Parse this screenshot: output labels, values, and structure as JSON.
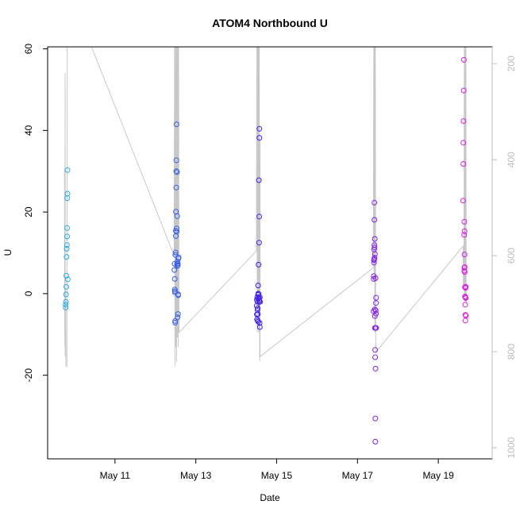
{
  "chart_data": {
    "type": "scatter",
    "title": "ATOM4 Northbound U",
    "xlabel": "Date",
    "ylabel": "U",
    "x_unit": "date",
    "xlim": [
      "2024-05-09T08:00",
      "2024-05-20T08:00"
    ],
    "ylim": [
      -40.5,
      60.5
    ],
    "x_ticks": [
      {
        "date": "2024-05-11",
        "label": "May 11"
      },
      {
        "date": "2024-05-13",
        "label": "May 13"
      },
      {
        "date": "2024-05-15",
        "label": "May 15"
      },
      {
        "date": "2024-05-17",
        "label": "May 17"
      },
      {
        "date": "2024-05-19",
        "label": "May 19"
      }
    ],
    "y_ticks": [
      -20,
      0,
      20,
      40,
      60
    ],
    "y2_ticks": [
      200,
      400,
      600,
      800,
      1000
    ],
    "y2_lim": [
      1023,
      165
    ],
    "y2_reversed": true,
    "grid": false,
    "legend": "none",
    "colors": {
      "axis": "#000000",
      "secondary_line": "#c8c8c8",
      "secondary_axis": "#bebebe"
    },
    "series": [
      {
        "color": "#29aee8",
        "points": [
          {
            "x": "2024-05-09T18:43",
            "y": -2.7
          },
          {
            "x": "2024-05-09T18:43",
            "y": -3.4
          },
          {
            "x": "2024-05-09T18:50",
            "y": -2.0
          },
          {
            "x": "2024-05-09T18:57",
            "y": -0.2
          },
          {
            "x": "2024-05-09T19:05",
            "y": 1.7
          },
          {
            "x": "2024-05-09T19:05",
            "y": 4.4
          },
          {
            "x": "2024-05-09T19:12",
            "y": 9.0
          },
          {
            "x": "2024-05-09T19:19",
            "y": 11.0
          },
          {
            "x": "2024-05-09T19:26",
            "y": 11.9
          },
          {
            "x": "2024-05-09T19:33",
            "y": 14.0
          },
          {
            "x": "2024-05-09T19:33",
            "y": 16.1
          },
          {
            "x": "2024-05-09T19:41",
            "y": 23.4
          },
          {
            "x": "2024-05-09T19:48",
            "y": 24.5
          },
          {
            "x": "2024-05-09T19:48",
            "y": 30.3
          },
          {
            "x": "2024-05-09T19:55",
            "y": 3.5
          }
        ]
      },
      {
        "color": "#3860ea",
        "points": [
          {
            "x": "2024-05-12T11:17",
            "y": 5.8
          },
          {
            "x": "2024-05-12T11:24",
            "y": 7.3
          },
          {
            "x": "2024-05-12T11:31",
            "y": 3.6
          },
          {
            "x": "2024-05-12T11:31",
            "y": 1.0
          },
          {
            "x": "2024-05-12T11:38",
            "y": 0.3
          },
          {
            "x": "2024-05-12T11:38",
            "y": 0.6
          },
          {
            "x": "2024-05-12T11:45",
            "y": -6.7
          },
          {
            "x": "2024-05-12T11:45",
            "y": -7.1
          },
          {
            "x": "2024-05-12T11:52",
            "y": 9.5
          },
          {
            "x": "2024-05-12T11:59",
            "y": 10.1
          },
          {
            "x": "2024-05-12T12:07",
            "y": 14.1
          },
          {
            "x": "2024-05-12T12:07",
            "y": 15.4
          },
          {
            "x": "2024-05-12T12:14",
            "y": 20.1
          },
          {
            "x": "2024-05-12T12:21",
            "y": 26.0
          },
          {
            "x": "2024-05-12T12:21",
            "y": 30.0
          },
          {
            "x": "2024-05-12T12:28",
            "y": 32.7
          },
          {
            "x": "2024-05-12T12:35",
            "y": 41.5
          },
          {
            "x": "2024-05-12T12:35",
            "y": 16.0
          },
          {
            "x": "2024-05-12T12:42",
            "y": 15.2
          },
          {
            "x": "2024-05-12T12:50",
            "y": 29.8
          },
          {
            "x": "2024-05-12T12:50",
            "y": 7.2
          },
          {
            "x": "2024-05-12T12:57",
            "y": 19.0
          },
          {
            "x": "2024-05-12T13:04",
            "y": 7.8
          },
          {
            "x": "2024-05-12T13:04",
            "y": 6.8
          },
          {
            "x": "2024-05-12T13:11",
            "y": -5.8
          },
          {
            "x": "2024-05-12T13:18",
            "y": 7.4
          },
          {
            "x": "2024-05-12T13:18",
            "y": 6.9
          },
          {
            "x": "2024-05-12T13:25",
            "y": -5.0
          },
          {
            "x": "2024-05-12T13:33",
            "y": -0.4
          },
          {
            "x": "2024-05-12T13:33",
            "y": -0.2
          },
          {
            "x": "2024-05-12T13:40",
            "y": 8.6
          },
          {
            "x": "2024-05-12T13:47",
            "y": 8.9
          }
        ]
      },
      {
        "color": "#4321e8",
        "points": [
          {
            "x": "2024-05-14T12:08",
            "y": -3.0
          },
          {
            "x": "2024-05-14T12:15",
            "y": -1.5
          },
          {
            "x": "2024-05-14T12:15",
            "y": -5.1
          },
          {
            "x": "2024-05-14T12:22",
            "y": -6.3
          },
          {
            "x": "2024-05-14T12:29",
            "y": -0.9
          },
          {
            "x": "2024-05-14T12:36",
            "y": -2.0
          },
          {
            "x": "2024-05-14T12:36",
            "y": -4.0
          },
          {
            "x": "2024-05-14T12:44",
            "y": -6.6
          },
          {
            "x": "2024-05-14T12:44",
            "y": -3.6
          },
          {
            "x": "2024-05-14T12:51",
            "y": -5.0
          },
          {
            "x": "2024-05-14T12:58",
            "y": 2.0
          },
          {
            "x": "2024-05-14T12:58",
            "y": -0.3
          },
          {
            "x": "2024-05-14T13:05",
            "y": -6.9
          },
          {
            "x": "2024-05-14T13:05",
            "y": 0.0
          },
          {
            "x": "2024-05-14T13:12",
            "y": -1.2
          },
          {
            "x": "2024-05-14T13:19",
            "y": -0.1
          },
          {
            "x": "2024-05-14T13:19",
            "y": 7.1
          },
          {
            "x": "2024-05-14T13:27",
            "y": 27.8
          },
          {
            "x": "2024-05-14T13:27",
            "y": -0.9
          },
          {
            "x": "2024-05-14T13:34",
            "y": 12.5
          },
          {
            "x": "2024-05-14T13:34",
            "y": -1.7
          },
          {
            "x": "2024-05-14T13:41",
            "y": 18.9
          },
          {
            "x": "2024-05-14T13:41",
            "y": -2.0
          },
          {
            "x": "2024-05-14T13:48",
            "y": 38.2
          },
          {
            "x": "2024-05-14T13:48",
            "y": 40.4
          },
          {
            "x": "2024-05-14T13:55",
            "y": -7.2
          },
          {
            "x": "2024-05-14T14:02",
            "y": -8.2
          },
          {
            "x": "2024-05-14T14:02",
            "y": -0.9
          },
          {
            "x": "2024-05-14T14:10",
            "y": -2.0
          }
        ]
      },
      {
        "color": "#8322e8",
        "points": [
          {
            "x": "2024-05-17T09:33",
            "y": -4.3
          },
          {
            "x": "2024-05-17T09:40",
            "y": 3.6
          },
          {
            "x": "2024-05-17T09:40",
            "y": 4.3
          },
          {
            "x": "2024-05-17T09:47",
            "y": 7.6
          },
          {
            "x": "2024-05-17T09:47",
            "y": 8.2
          },
          {
            "x": "2024-05-17T09:54",
            "y": 8.4
          },
          {
            "x": "2024-05-17T09:54",
            "y": 10.8
          },
          {
            "x": "2024-05-17T10:01",
            "y": 11.9
          },
          {
            "x": "2024-05-17T10:01",
            "y": 18.1
          },
          {
            "x": "2024-05-17T10:01",
            "y": 22.3
          },
          {
            "x": "2024-05-17T10:08",
            "y": 11.3
          },
          {
            "x": "2024-05-17T10:08",
            "y": 8.8
          },
          {
            "x": "2024-05-17T10:16",
            "y": -3.9
          },
          {
            "x": "2024-05-17T10:16",
            "y": 13.4
          },
          {
            "x": "2024-05-17T10:23",
            "y": 9.7
          },
          {
            "x": "2024-05-17T10:23",
            "y": -5.5
          },
          {
            "x": "2024-05-17T10:23",
            "y": -8.4
          },
          {
            "x": "2024-05-17T10:30",
            "y": -15.6
          },
          {
            "x": "2024-05-17T10:30",
            "y": -13.8
          },
          {
            "x": "2024-05-17T10:37",
            "y": -30.6
          },
          {
            "x": "2024-05-17T10:37",
            "y": -36.3
          },
          {
            "x": "2024-05-17T10:44",
            "y": 3.8
          },
          {
            "x": "2024-05-17T10:44",
            "y": -18.4
          },
          {
            "x": "2024-05-17T10:44",
            "y": -8.4
          },
          {
            "x": "2024-05-17T10:51",
            "y": -4.1
          },
          {
            "x": "2024-05-17T10:59",
            "y": -2.3
          },
          {
            "x": "2024-05-17T10:59",
            "y": -4.9
          },
          {
            "x": "2024-05-17T11:06",
            "y": -1.0
          },
          {
            "x": "2024-05-17T11:06",
            "y": -8.4
          }
        ]
      },
      {
        "color": "#d620e0",
        "points": [
          {
            "x": "2024-05-19T15:14",
            "y": 57.3
          },
          {
            "x": "2024-05-19T15:07",
            "y": 49.8
          },
          {
            "x": "2024-05-19T15:00",
            "y": 42.3
          },
          {
            "x": "2024-05-19T14:53",
            "y": 37.0
          },
          {
            "x": "2024-05-19T14:53",
            "y": 31.8
          },
          {
            "x": "2024-05-19T14:46",
            "y": 22.8
          },
          {
            "x": "2024-05-19T15:21",
            "y": 14.4
          },
          {
            "x": "2024-05-19T15:28",
            "y": 17.6
          },
          {
            "x": "2024-05-19T15:35",
            "y": 15.3
          },
          {
            "x": "2024-05-19T15:28",
            "y": 6.4
          },
          {
            "x": "2024-05-19T15:28",
            "y": 5.6
          },
          {
            "x": "2024-05-19T15:35",
            "y": 9.6
          },
          {
            "x": "2024-05-19T15:42",
            "y": 6.5
          },
          {
            "x": "2024-05-19T15:42",
            "y": 5.3
          },
          {
            "x": "2024-05-19T15:49",
            "y": 1.6
          },
          {
            "x": "2024-05-19T15:49",
            "y": -0.7
          },
          {
            "x": "2024-05-19T15:57",
            "y": 1.5
          },
          {
            "x": "2024-05-19T15:57",
            "y": -2.7
          },
          {
            "x": "2024-05-19T16:04",
            "y": -5.2
          },
          {
            "x": "2024-05-19T16:04",
            "y": -6.6
          },
          {
            "x": "2024-05-19T16:11",
            "y": -0.9
          },
          {
            "x": "2024-05-19T16:11",
            "y": 1.4
          },
          {
            "x": "2024-05-19T16:18",
            "y": 1.7
          },
          {
            "x": "2024-05-19T16:18",
            "y": -1.1
          },
          {
            "x": "2024-05-19T16:25",
            "y": -5.4
          }
        ]
      }
    ],
    "secondary_series": {
      "axis": "right",
      "color": "#c8c8c8",
      "points": [
        {
          "x": "2024-05-09T18:00",
          "y": 420
        },
        {
          "x": "2024-05-09T18:14",
          "y": 790
        },
        {
          "x": "2024-05-09T18:21",
          "y": 220
        },
        {
          "x": "2024-05-09T18:28",
          "y": 810
        },
        {
          "x": "2024-05-09T18:36",
          "y": 805
        },
        {
          "x": "2024-05-09T18:43",
          "y": 670
        },
        {
          "x": "2024-05-09T18:50",
          "y": 830
        },
        {
          "x": "2024-05-09T19:26",
          "y": 830
        },
        {
          "x": "2024-05-09T19:40",
          "y": 165
        },
        {
          "x": "2024-05-09T19:55",
          "y": 165
        },
        {
          "x": "2024-05-10T10:05",
          "y": 165
        },
        {
          "x": "2024-05-12T11:10",
          "y": 600
        },
        {
          "x": "2024-05-12T11:24",
          "y": 165
        },
        {
          "x": "2024-05-12T11:38",
          "y": 830
        },
        {
          "x": "2024-05-12T11:52",
          "y": 165
        },
        {
          "x": "2024-05-12T12:07",
          "y": 790
        },
        {
          "x": "2024-05-12T12:21",
          "y": 165
        },
        {
          "x": "2024-05-12T12:35",
          "y": 820
        },
        {
          "x": "2024-05-12T12:50",
          "y": 165
        },
        {
          "x": "2024-05-12T13:04",
          "y": 770
        },
        {
          "x": "2024-05-12T13:18",
          "y": 165
        },
        {
          "x": "2024-05-12T13:33",
          "y": 790
        },
        {
          "x": "2024-05-12T13:47",
          "y": 165
        },
        {
          "x": "2024-05-12T14:01",
          "y": 760
        },
        {
          "x": "2024-05-14T12:00",
          "y": 590
        },
        {
          "x": "2024-05-14T12:15",
          "y": 165
        },
        {
          "x": "2024-05-14T12:29",
          "y": 760
        },
        {
          "x": "2024-05-14T12:44",
          "y": 165
        },
        {
          "x": "2024-05-14T12:58",
          "y": 740
        },
        {
          "x": "2024-05-14T13:12",
          "y": 165
        },
        {
          "x": "2024-05-14T13:27",
          "y": 760
        },
        {
          "x": "2024-05-14T13:41",
          "y": 165
        },
        {
          "x": "2024-05-14T13:55",
          "y": 820
        },
        {
          "x": "2024-05-14T14:10",
          "y": 360
        },
        {
          "x": "2024-05-14T14:10",
          "y": 810
        },
        {
          "x": "2024-05-17T09:26",
          "y": 625
        },
        {
          "x": "2024-05-17T09:40",
          "y": 165
        },
        {
          "x": "2024-05-17T09:54",
          "y": 650
        },
        {
          "x": "2024-05-17T10:08",
          "y": 165
        },
        {
          "x": "2024-05-17T10:23",
          "y": 760
        },
        {
          "x": "2024-05-17T10:37",
          "y": 165
        },
        {
          "x": "2024-05-17T10:51",
          "y": 770
        },
        {
          "x": "2024-05-17T11:06",
          "y": 800
        },
        {
          "x": "2024-05-19T14:46",
          "y": 580
        },
        {
          "x": "2024-05-19T14:50",
          "y": 660
        },
        {
          "x": "2024-05-19T15:14",
          "y": 660
        },
        {
          "x": "2024-05-19T15:28",
          "y": 165
        },
        {
          "x": "2024-05-19T15:42",
          "y": 690
        },
        {
          "x": "2024-05-19T15:57",
          "y": 165
        },
        {
          "x": "2024-05-19T16:11",
          "y": 680
        },
        {
          "x": "2024-05-19T16:25",
          "y": 165
        },
        {
          "x": "2024-05-19T16:32",
          "y": 700
        }
      ]
    }
  }
}
